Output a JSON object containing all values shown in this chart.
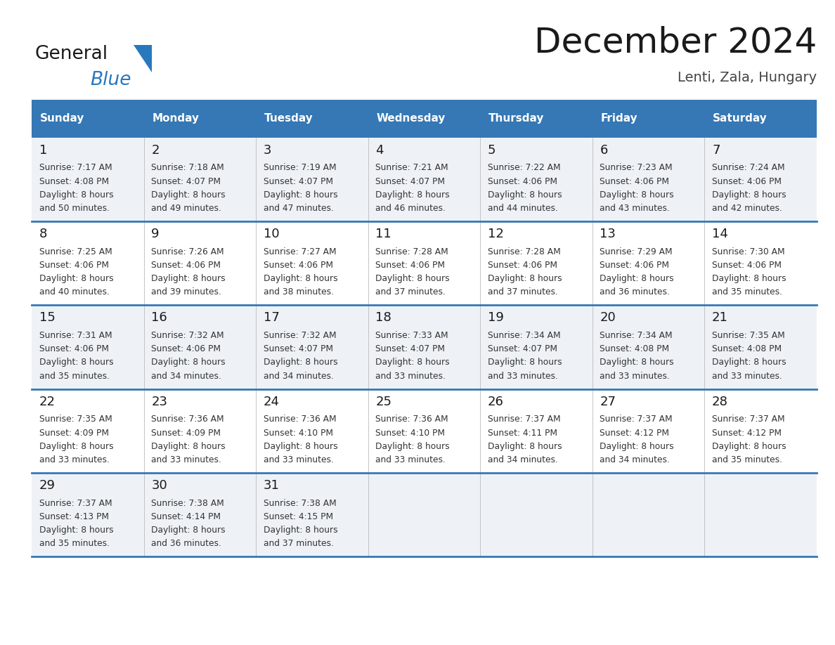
{
  "title": "December 2024",
  "subtitle": "Lenti, Zala, Hungary",
  "days_of_week": [
    "Sunday",
    "Monday",
    "Tuesday",
    "Wednesday",
    "Thursday",
    "Friday",
    "Saturday"
  ],
  "header_bg": "#3578b5",
  "header_text_color": "#ffffff",
  "row_bg_odd": "#eef2f6",
  "row_bg_even": "#ffffff",
  "divider_color": "#3578b5",
  "text_color": "#333333",
  "logo_color1": "#1a1a1a",
  "logo_color2": "#2878be",
  "calendar_data": [
    [
      {
        "day": "1",
        "sunrise": "7:17 AM",
        "sunset": "4:08 PM",
        "dl1": "Daylight: 8 hours",
        "dl2": "and 50 minutes."
      },
      {
        "day": "2",
        "sunrise": "7:18 AM",
        "sunset": "4:07 PM",
        "dl1": "Daylight: 8 hours",
        "dl2": "and 49 minutes."
      },
      {
        "day": "3",
        "sunrise": "7:19 AM",
        "sunset": "4:07 PM",
        "dl1": "Daylight: 8 hours",
        "dl2": "and 47 minutes."
      },
      {
        "day": "4",
        "sunrise": "7:21 AM",
        "sunset": "4:07 PM",
        "dl1": "Daylight: 8 hours",
        "dl2": "and 46 minutes."
      },
      {
        "day": "5",
        "sunrise": "7:22 AM",
        "sunset": "4:06 PM",
        "dl1": "Daylight: 8 hours",
        "dl2": "and 44 minutes."
      },
      {
        "day": "6",
        "sunrise": "7:23 AM",
        "sunset": "4:06 PM",
        "dl1": "Daylight: 8 hours",
        "dl2": "and 43 minutes."
      },
      {
        "day": "7",
        "sunrise": "7:24 AM",
        "sunset": "4:06 PM",
        "dl1": "Daylight: 8 hours",
        "dl2": "and 42 minutes."
      }
    ],
    [
      {
        "day": "8",
        "sunrise": "7:25 AM",
        "sunset": "4:06 PM",
        "dl1": "Daylight: 8 hours",
        "dl2": "and 40 minutes."
      },
      {
        "day": "9",
        "sunrise": "7:26 AM",
        "sunset": "4:06 PM",
        "dl1": "Daylight: 8 hours",
        "dl2": "and 39 minutes."
      },
      {
        "day": "10",
        "sunrise": "7:27 AM",
        "sunset": "4:06 PM",
        "dl1": "Daylight: 8 hours",
        "dl2": "and 38 minutes."
      },
      {
        "day": "11",
        "sunrise": "7:28 AM",
        "sunset": "4:06 PM",
        "dl1": "Daylight: 8 hours",
        "dl2": "and 37 minutes."
      },
      {
        "day": "12",
        "sunrise": "7:28 AM",
        "sunset": "4:06 PM",
        "dl1": "Daylight: 8 hours",
        "dl2": "and 37 minutes."
      },
      {
        "day": "13",
        "sunrise": "7:29 AM",
        "sunset": "4:06 PM",
        "dl1": "Daylight: 8 hours",
        "dl2": "and 36 minutes."
      },
      {
        "day": "14",
        "sunrise": "7:30 AM",
        "sunset": "4:06 PM",
        "dl1": "Daylight: 8 hours",
        "dl2": "and 35 minutes."
      }
    ],
    [
      {
        "day": "15",
        "sunrise": "7:31 AM",
        "sunset": "4:06 PM",
        "dl1": "Daylight: 8 hours",
        "dl2": "and 35 minutes."
      },
      {
        "day": "16",
        "sunrise": "7:32 AM",
        "sunset": "4:06 PM",
        "dl1": "Daylight: 8 hours",
        "dl2": "and 34 minutes."
      },
      {
        "day": "17",
        "sunrise": "7:32 AM",
        "sunset": "4:07 PM",
        "dl1": "Daylight: 8 hours",
        "dl2": "and 34 minutes."
      },
      {
        "day": "18",
        "sunrise": "7:33 AM",
        "sunset": "4:07 PM",
        "dl1": "Daylight: 8 hours",
        "dl2": "and 33 minutes."
      },
      {
        "day": "19",
        "sunrise": "7:34 AM",
        "sunset": "4:07 PM",
        "dl1": "Daylight: 8 hours",
        "dl2": "and 33 minutes."
      },
      {
        "day": "20",
        "sunrise": "7:34 AM",
        "sunset": "4:08 PM",
        "dl1": "Daylight: 8 hours",
        "dl2": "and 33 minutes."
      },
      {
        "day": "21",
        "sunrise": "7:35 AM",
        "sunset": "4:08 PM",
        "dl1": "Daylight: 8 hours",
        "dl2": "and 33 minutes."
      }
    ],
    [
      {
        "day": "22",
        "sunrise": "7:35 AM",
        "sunset": "4:09 PM",
        "dl1": "Daylight: 8 hours",
        "dl2": "and 33 minutes."
      },
      {
        "day": "23",
        "sunrise": "7:36 AM",
        "sunset": "4:09 PM",
        "dl1": "Daylight: 8 hours",
        "dl2": "and 33 minutes."
      },
      {
        "day": "24",
        "sunrise": "7:36 AM",
        "sunset": "4:10 PM",
        "dl1": "Daylight: 8 hours",
        "dl2": "and 33 minutes."
      },
      {
        "day": "25",
        "sunrise": "7:36 AM",
        "sunset": "4:10 PM",
        "dl1": "Daylight: 8 hours",
        "dl2": "and 33 minutes."
      },
      {
        "day": "26",
        "sunrise": "7:37 AM",
        "sunset": "4:11 PM",
        "dl1": "Daylight: 8 hours",
        "dl2": "and 34 minutes."
      },
      {
        "day": "27",
        "sunrise": "7:37 AM",
        "sunset": "4:12 PM",
        "dl1": "Daylight: 8 hours",
        "dl2": "and 34 minutes."
      },
      {
        "day": "28",
        "sunrise": "7:37 AM",
        "sunset": "4:12 PM",
        "dl1": "Daylight: 8 hours",
        "dl2": "and 35 minutes."
      }
    ],
    [
      {
        "day": "29",
        "sunrise": "7:37 AM",
        "sunset": "4:13 PM",
        "dl1": "Daylight: 8 hours",
        "dl2": "and 35 minutes."
      },
      {
        "day": "30",
        "sunrise": "7:38 AM",
        "sunset": "4:14 PM",
        "dl1": "Daylight: 8 hours",
        "dl2": "and 36 minutes."
      },
      {
        "day": "31",
        "sunrise": "7:38 AM",
        "sunset": "4:15 PM",
        "dl1": "Daylight: 8 hours",
        "dl2": "and 37 minutes."
      },
      null,
      null,
      null,
      null
    ]
  ]
}
